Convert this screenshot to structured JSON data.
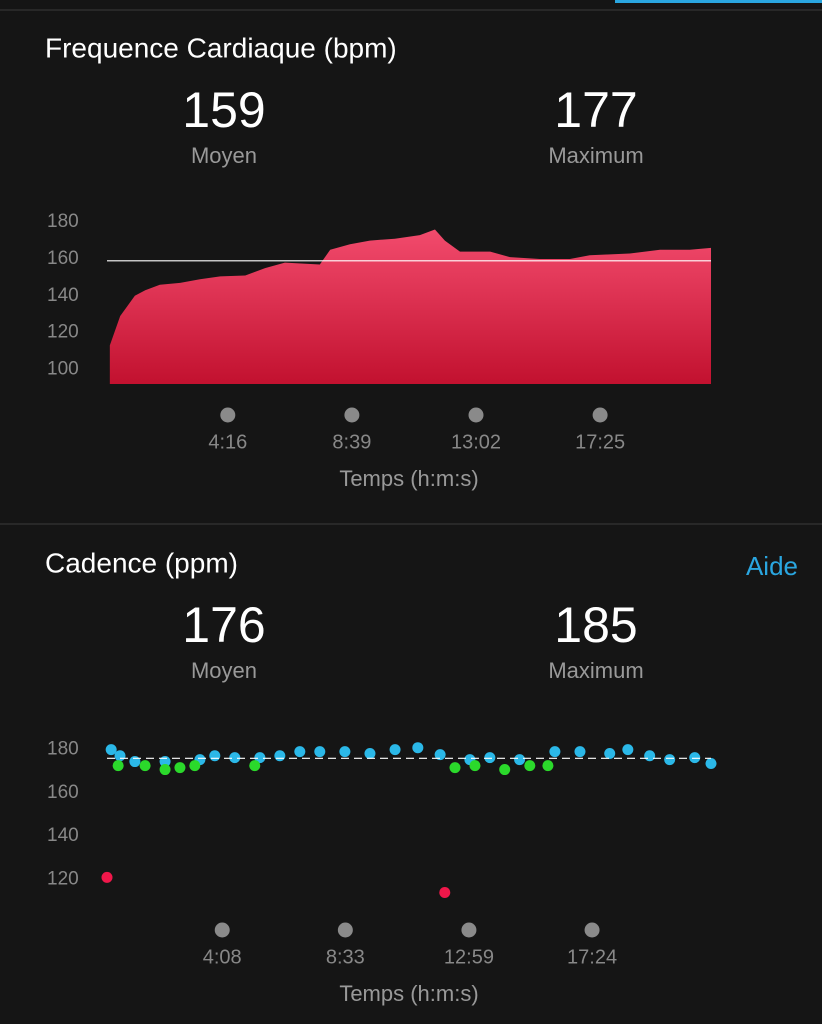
{
  "help_link": "Aide",
  "chart_data": [
    {
      "type": "area",
      "title": "Frequence Cardiaque (bpm)",
      "stats": [
        {
          "value": 159,
          "label": "Moyen"
        },
        {
          "value": 177,
          "label": "Maximum"
        }
      ],
      "average_stat": 0,
      "average_style": "solid",
      "x_label": "Temps (h:m:s)",
      "x": [
        6,
        28,
        59,
        81,
        112,
        155,
        197,
        240,
        293,
        335,
        377,
        451,
        473,
        515,
        557,
        610,
        663,
        695,
        716,
        748,
        812,
        854,
        917,
        981,
        1023,
        1108,
        1172,
        1235,
        1280
      ],
      "values": [
        113,
        129,
        140,
        143,
        146,
        147,
        149,
        150.5,
        151,
        155,
        158,
        157,
        165,
        168,
        170,
        171,
        173,
        176,
        170,
        164,
        164,
        161,
        160,
        160,
        162,
        163,
        165,
        165,
        166
      ],
      "color": "#e8284f",
      "xlim": [
        0,
        1280
      ],
      "xticks": [
        {
          "value": 256,
          "label": "4:16"
        },
        {
          "value": 519,
          "label": "8:39"
        },
        {
          "value": 782,
          "label": "13:02"
        },
        {
          "value": 1045,
          "label": "17:25"
        }
      ],
      "ylim": [
        92,
        185
      ],
      "yticks": [
        100,
        120,
        140,
        160,
        180
      ]
    },
    {
      "type": "scatter",
      "title": "Cadence (ppm)",
      "stats": [
        {
          "value": 176,
          "label": "Moyen"
        },
        {
          "value": 185,
          "label": "Maximum"
        }
      ],
      "average_stat": 0,
      "average_style": "dashed",
      "x_label": "Temps (h:m:s)",
      "series": [
        {
          "color": "#2bb8e8",
          "x": [
            9,
            28,
            60,
            125,
            200,
            232,
            275,
            329,
            372,
            415,
            458,
            512,
            566,
            620,
            669,
            717,
            781,
            824,
            888,
            964,
            1018,
            1082,
            1121,
            1168,
            1211,
            1265,
            1300
          ],
          "values": [
            180,
            177.2,
            174.5,
            174.5,
            175.4,
            177.2,
            176.3,
            176.3,
            177.2,
            179.1,
            179.1,
            179.1,
            178.2,
            180,
            180.9,
            177.7,
            175.4,
            176.3,
            175.4,
            179.1,
            179.1,
            178.2,
            180,
            177.2,
            175.4,
            176.3,
            173.6
          ]
        },
        {
          "color": "#2bd92b",
          "x": [
            24,
            82,
            125,
            157,
            189,
            318,
            749,
            792,
            856,
            910,
            949
          ],
          "values": [
            172.6,
            172.6,
            170.8,
            171.7,
            172.6,
            172.6,
            171.7,
            172.6,
            170.8,
            172.6,
            172.6
          ]
        },
        {
          "color": "#f0174a",
          "x": [
            0,
            727
          ],
          "values": [
            121,
            114
          ]
        }
      ],
      "xlim": [
        0,
        1300
      ],
      "xticks": [
        {
          "value": 248,
          "label": "4:08"
        },
        {
          "value": 513,
          "label": "8:33"
        },
        {
          "value": 779,
          "label": "12:59"
        },
        {
          "value": 1044,
          "label": "17:24"
        }
      ],
      "ylim": [
        111,
        190
      ],
      "yticks": [
        120,
        140,
        160,
        180
      ]
    }
  ]
}
